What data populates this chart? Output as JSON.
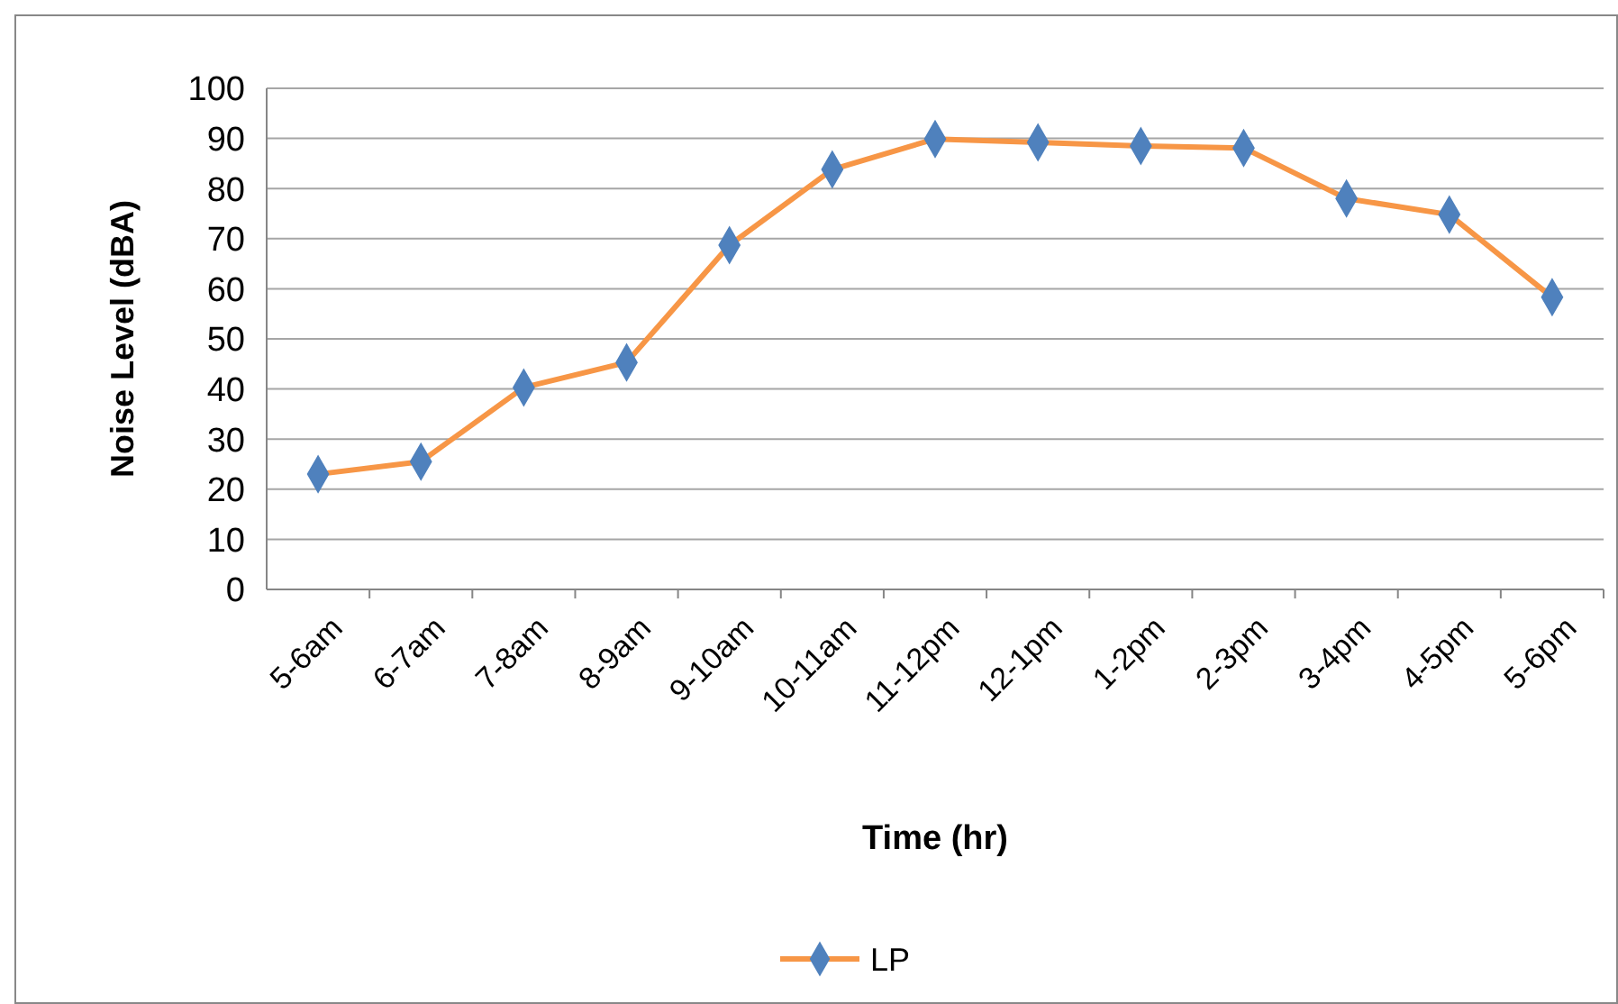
{
  "chart_data": {
    "type": "line",
    "xlabel": "Time (hr)",
    "ylabel": "Noise Level (dBA)",
    "categories": [
      "5-6am",
      "6-7am",
      "7-8am",
      "8-9am",
      "9-10am",
      "10-11am",
      "11-12pm",
      "12-1pm",
      "1-2pm",
      "2-3pm",
      "3-4pm",
      "4-5pm",
      "5-6pm"
    ],
    "series": [
      {
        "name": "LP",
        "color": "#f79646",
        "values": [
          23,
          25.5,
          40.3,
          45.3,
          68.7,
          83.8,
          89.9,
          89.2,
          88.5,
          88.1,
          78,
          74.8,
          58.3
        ]
      }
    ],
    "ylim": [
      0,
      100
    ],
    "yticks": [
      0,
      10,
      20,
      30,
      40,
      50,
      60,
      70,
      80,
      90,
      100
    ],
    "grid": "y",
    "legend": "bottom",
    "marker": "diamond",
    "line_style": "solid"
  }
}
